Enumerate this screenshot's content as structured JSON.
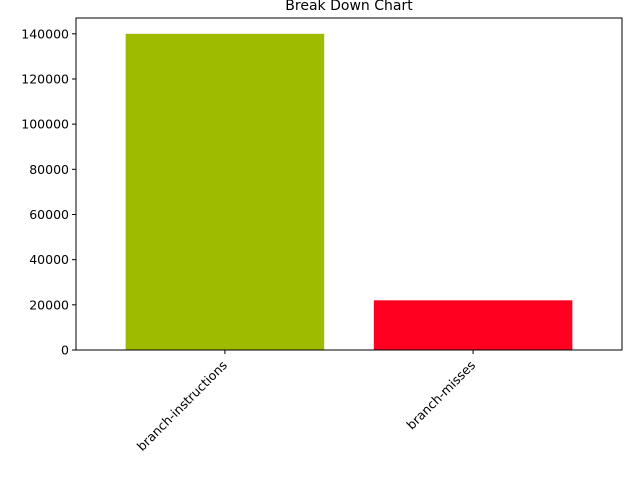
{
  "chart_data": {
    "type": "bar",
    "title": "Break Down Chart",
    "xlabel": "",
    "ylabel": "",
    "categories": [
      "branch-instructions",
      "branch-misses"
    ],
    "values": [
      140000,
      22000
    ],
    "colors": [
      "#9ebb00",
      "#ff0020"
    ],
    "ylim": [
      0,
      147000
    ],
    "yticks": [
      0,
      20000,
      40000,
      60000,
      80000,
      100000,
      120000,
      140000
    ],
    "ytick_labels": [
      "0",
      "20000",
      "40000",
      "60000",
      "80000",
      "100000",
      "120000",
      "140000"
    ],
    "xtick_rotation": 45,
    "grid": false,
    "legend": "none"
  }
}
